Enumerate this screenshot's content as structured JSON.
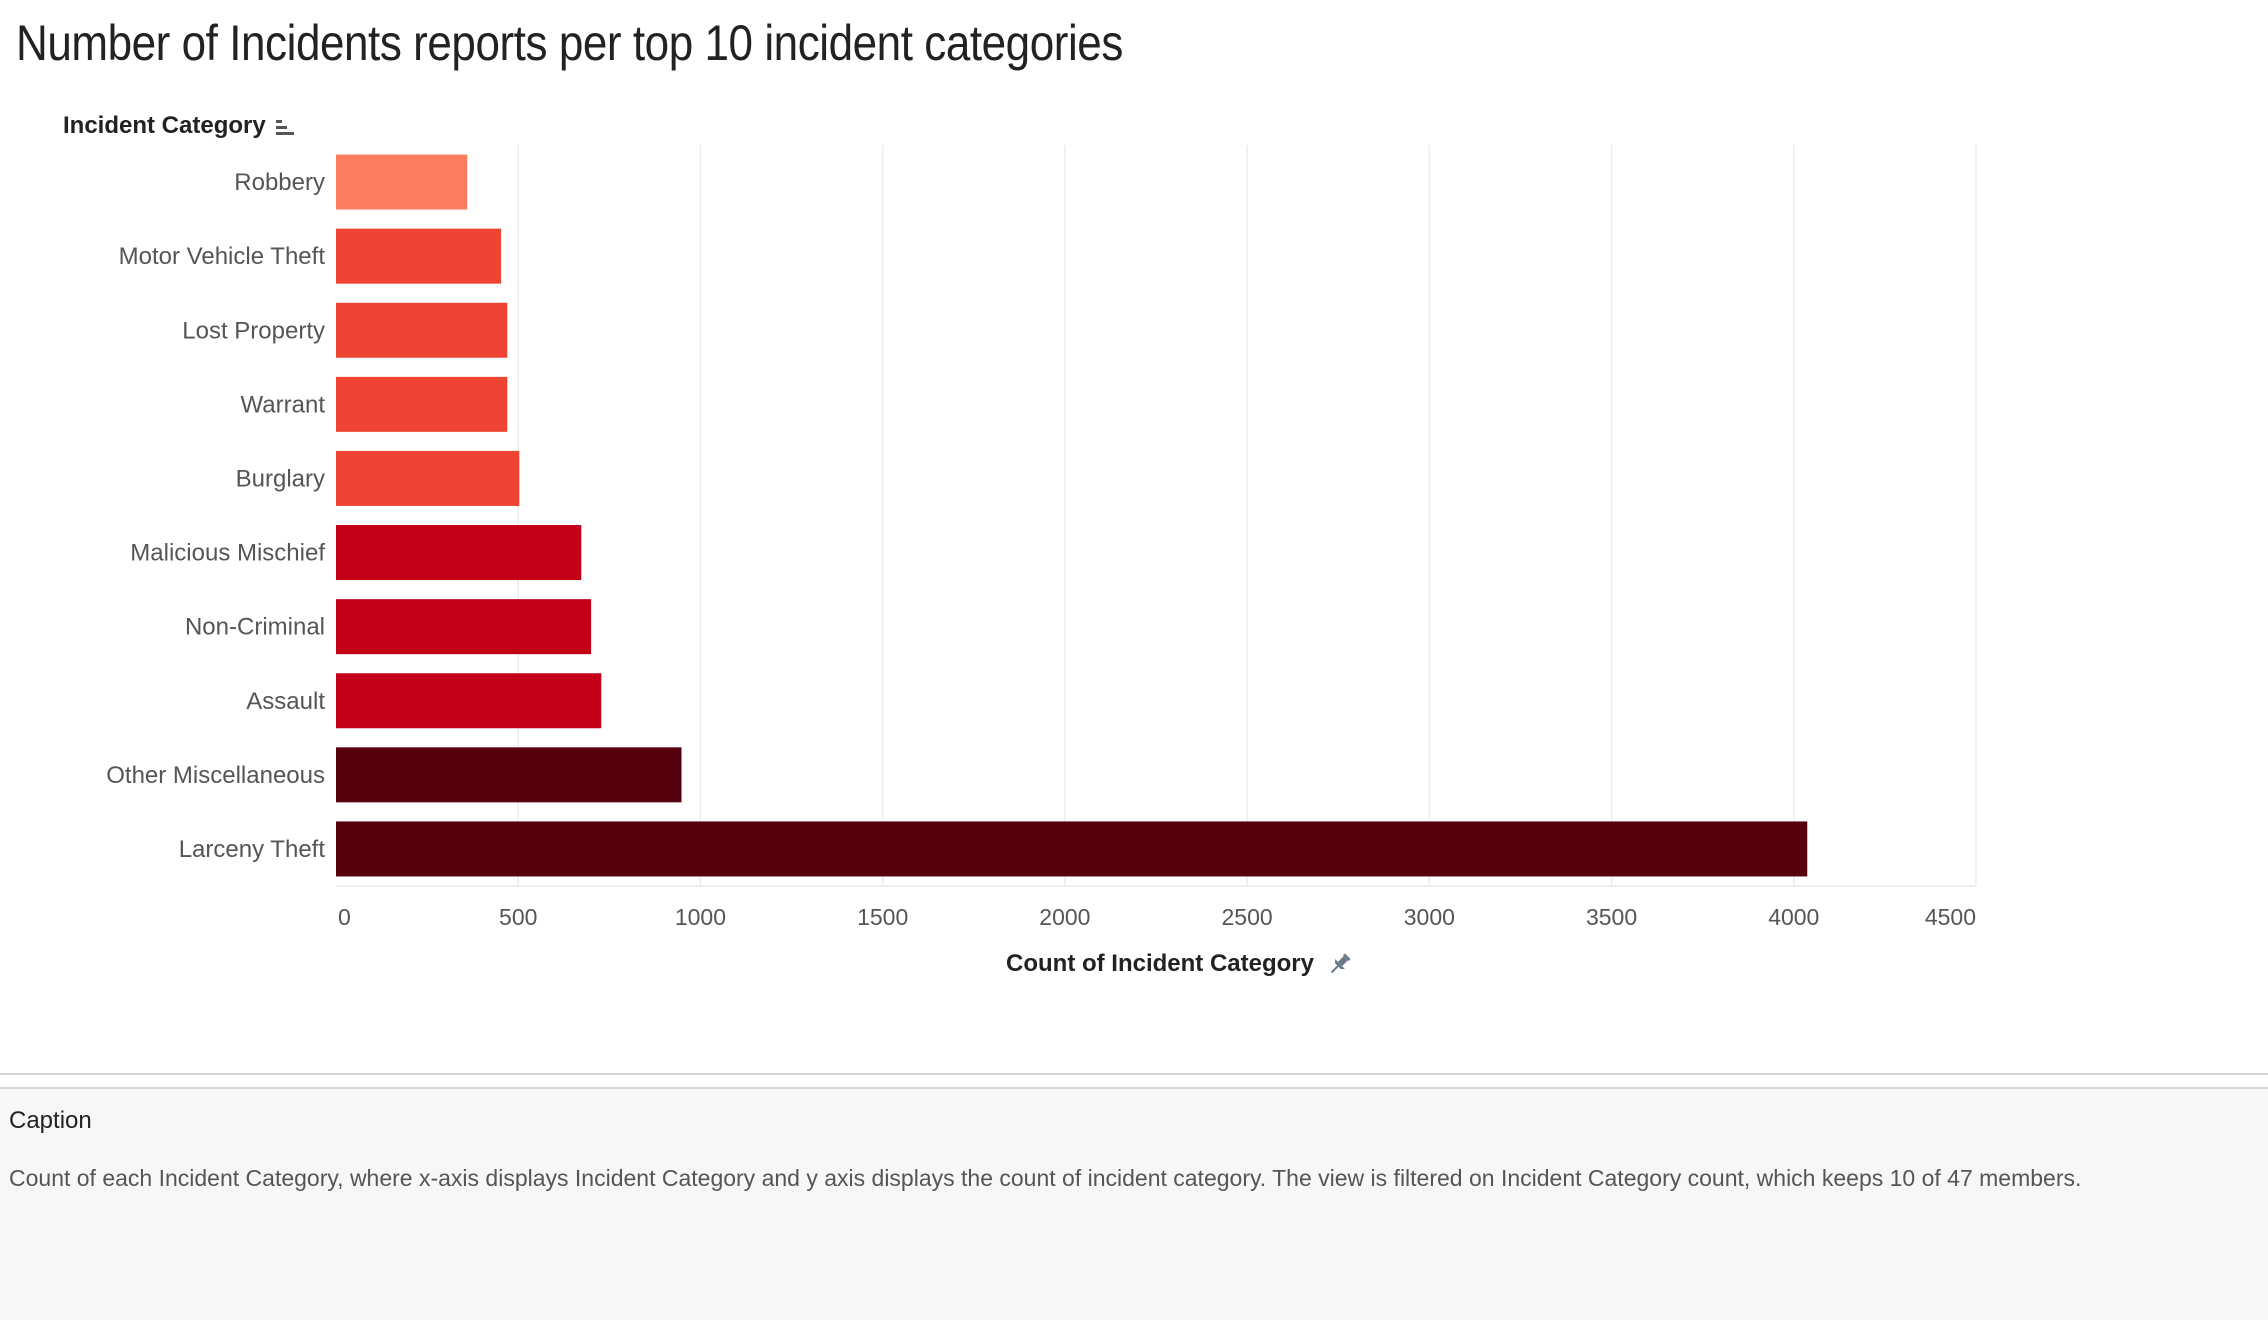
{
  "title": "Number of Incidents reports per top 10 incident categories",
  "caption": {
    "heading": "Caption",
    "text": "Count of each Incident Category, where x-axis displays Incident Category  and y axis displays the count of incident category. The view is filtered on Incident Category count, which keeps 10 of 47 members."
  },
  "icons": {
    "sort": "sort-descending-icon",
    "pin": "pin-icon"
  },
  "chart_data": {
    "type": "bar",
    "orientation": "horizontal",
    "ylabel": "Incident Category",
    "xlabel": "Count of Incident Category",
    "xlim": [
      0,
      4500
    ],
    "x_ticks": [
      0,
      500,
      1000,
      1500,
      2000,
      2500,
      3000,
      3500,
      4000,
      4500
    ],
    "grid": "vertical",
    "categories": [
      "Robbery",
      "Motor Vehicle Theft",
      "Lost Property",
      "Warrant",
      "Burglary",
      "Malicious Mischief",
      "Non-Criminal",
      "Assault",
      "Other Miscellaneous",
      "Larceny Theft"
    ],
    "values": [
      360,
      453,
      470,
      470,
      503,
      673,
      700,
      728,
      948,
      4037
    ],
    "colors": [
      "#fb7d5f",
      "#ef4434",
      "#ef4434",
      "#ef4434",
      "#ef4434",
      "#c20018",
      "#c20018",
      "#c20018",
      "#57000d",
      "#57000d"
    ]
  }
}
